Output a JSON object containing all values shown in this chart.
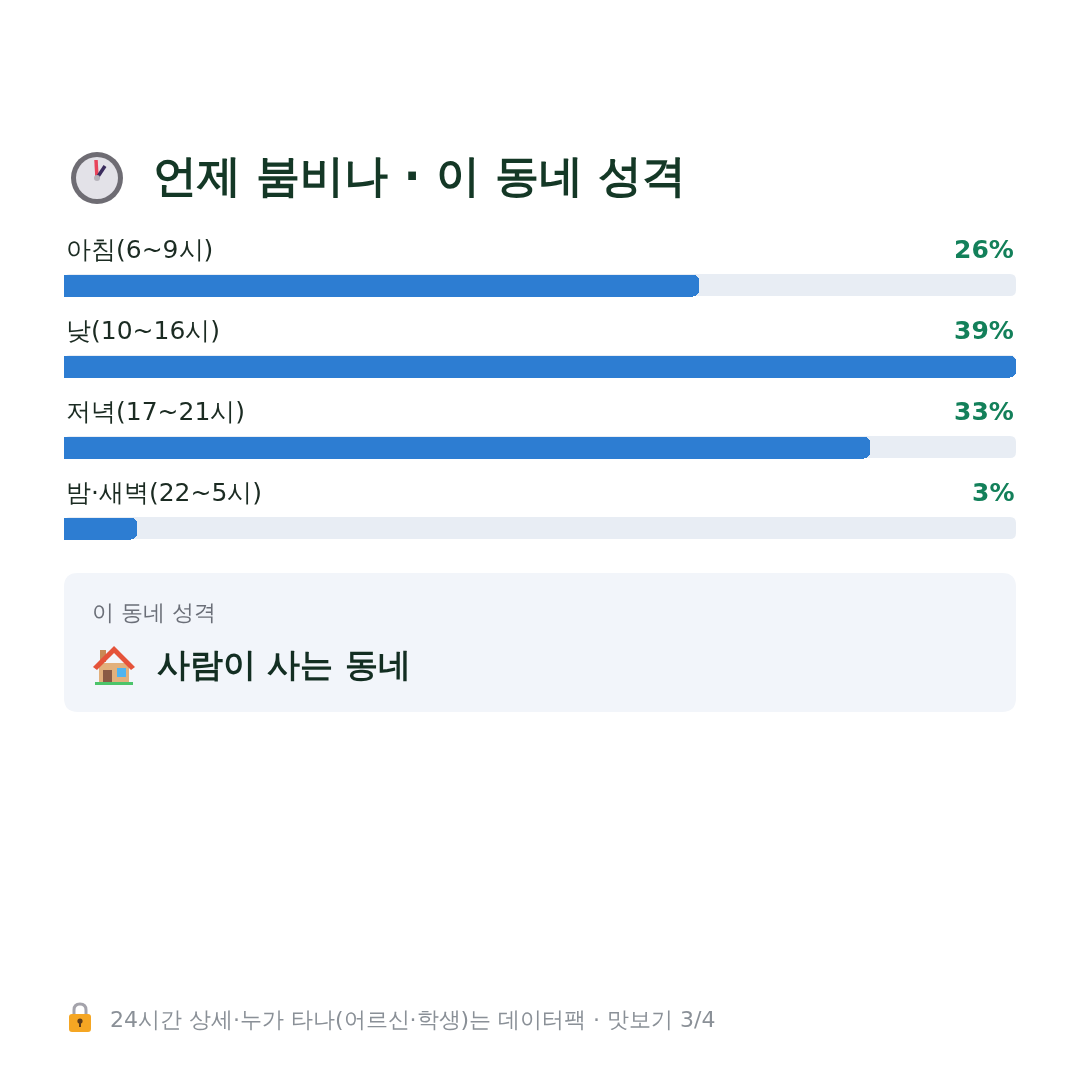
{
  "chart_data": {
    "type": "bar",
    "orientation": "horizontal",
    "title": "언제 붐비나 · 이 동네 성격",
    "categories": [
      "아침(6~9시)",
      "낮(10~16시)",
      "저녁(17~21시)",
      "밤·새벽(22~5시)"
    ],
    "values": [
      26,
      39,
      33,
      3
    ],
    "value_labels": [
      "26%",
      "39%",
      "33%",
      "3%"
    ],
    "color": "#2d7dd2",
    "xlim": [
      0,
      39
    ],
    "tick_labels": "y",
    "annotations": [
      "이 동네 성격",
      "사람이 사는 동네",
      "24시간 상세·누가 타나(어르신·학생)는 데이터팩 · 맛보기 3/4"
    ]
  }
}
